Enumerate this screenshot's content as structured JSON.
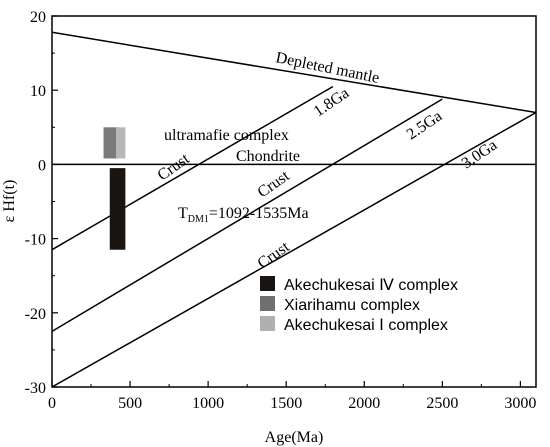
{
  "chart_data": {
    "type": "line",
    "title": "",
    "xlabel": "Age(Ma)",
    "ylabel": "ε Hf(t)",
    "xlim": [
      0,
      3100
    ],
    "ylim": [
      -30,
      20
    ],
    "x_ticks": [
      "0",
      "500",
      "1000",
      "1500",
      "2000",
      "2500",
      "3000"
    ],
    "y_ticks": [
      "20",
      "10",
      "0",
      "-10",
      "-20",
      "-30"
    ],
    "grid": false,
    "series": [
      {
        "name": "Depleted mantle",
        "x": [
          0,
          3100
        ],
        "y": [
          17.8,
          7.0
        ]
      },
      {
        "name": "Chondrite",
        "x": [
          0,
          3100
        ],
        "y": [
          0,
          0
        ]
      },
      {
        "name": "1.8Ga",
        "x": [
          0,
          1800
        ],
        "y": [
          -11.5,
          10.5
        ]
      },
      {
        "name": "2.5Ga",
        "x": [
          0,
          2500
        ],
        "y": [
          -22.5,
          8.8
        ]
      },
      {
        "name": "3.0Ga",
        "x": [
          0,
          3100
        ],
        "y": [
          -30,
          7.0
        ]
      }
    ],
    "bars": [
      {
        "name": "Akechukesai Ⅳ complex",
        "x0": 370,
        "x1": 470,
        "y0": -11.5,
        "y1": -0.5,
        "color": "#1a1411"
      },
      {
        "name": "Xiarihamu complex",
        "x0": 330,
        "x1": 430,
        "y0": 0.8,
        "y1": 5.0,
        "color": "#7a7a7a"
      },
      {
        "name": "Akechukesai Ⅰ complex",
        "x0": 410,
        "x1": 470,
        "y0": 0.8,
        "y1": 5.0,
        "color": "#b8b8b8"
      }
    ],
    "annotations": {
      "depleted": "Depleted mantle",
      "chondrite": "Chondrite",
      "ultramafic": "ultramafie complex",
      "crust1": "Crust",
      "crust2": "Crust",
      "crust3": "Crust",
      "ga18": "1.8Ga",
      "ga25": "2.5Ga",
      "ga30": "3.0Ga",
      "tdm_prefix": "T",
      "tdm_sub": "DM1",
      "tdm_value": "=1092-1535Ma"
    },
    "legend": [
      {
        "label": "Akechukesai Ⅳ complex",
        "color": "#1a1411"
      },
      {
        "label": "Xiarihamu complex",
        "color": "#6f6f6f"
      },
      {
        "label": "Akechukesai Ⅰ complex",
        "color": "#b0b0b0"
      }
    ],
    "legend_position": "bottom-right"
  }
}
